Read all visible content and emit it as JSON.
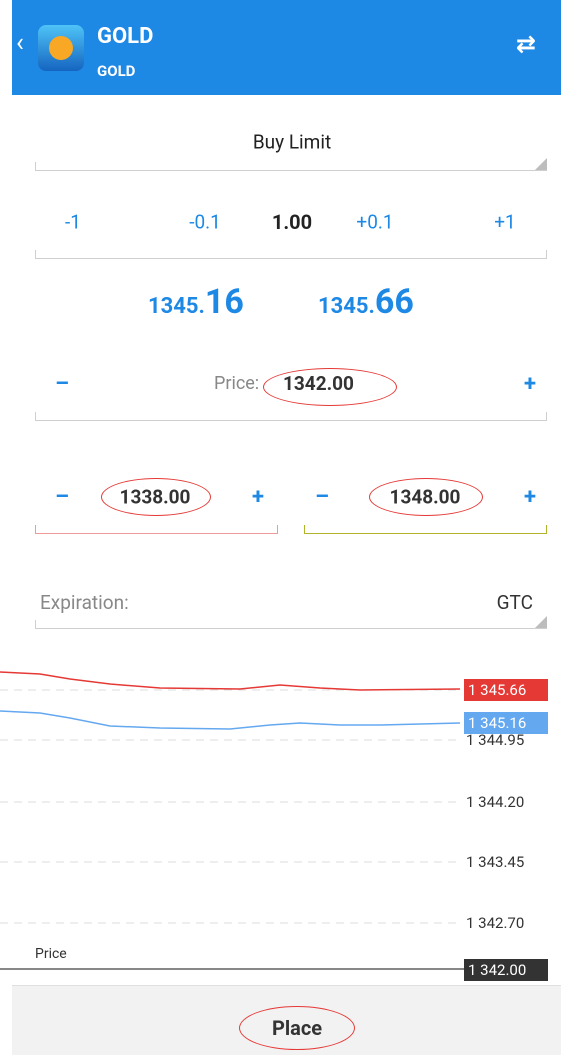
{
  "header": {
    "title": "GOLD",
    "subtitle": "GOLD"
  },
  "order_type": "Buy Limit",
  "volume": {
    "steps": [
      "-1",
      "-0.1",
      "+0.1",
      "+1"
    ],
    "value": "1.00"
  },
  "quotes": {
    "bid_main": "1345.",
    "bid_big": "16",
    "ask_main": "1345.",
    "ask_big": "66"
  },
  "price": {
    "label": "Price:",
    "value": "1342.00",
    "minus": "–",
    "plus": "+"
  },
  "stop_loss": {
    "value": "1338.00",
    "minus": "–",
    "plus": "+"
  },
  "take_profit": {
    "value": "1348.00",
    "minus": "–",
    "plus": "+"
  },
  "expiration": {
    "label": "Expiration:",
    "value": "GTC"
  },
  "chart": {
    "ask_label": "1 345.66",
    "bid_label": "1 345.16",
    "axis_labels": [
      "1 344.95",
      "1 344.20",
      "1 343.45",
      "1 342.70"
    ],
    "price_line_label": "Price",
    "price_line_value": "1 342.00"
  },
  "button": "Place"
}
